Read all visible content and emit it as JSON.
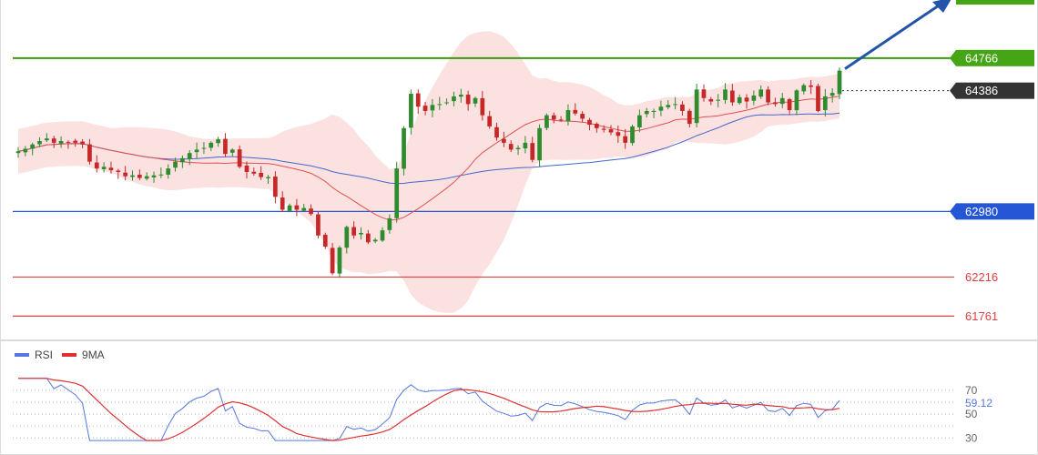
{
  "chart_data": {
    "type": "candlestick",
    "title": "",
    "price_axis": {
      "ylim": [
        61500,
        65400
      ]
    },
    "levels": [
      {
        "value": 64766,
        "label": "64766",
        "color": "#3a9a0d",
        "style": "solid",
        "tag_bg": "#46a514",
        "tag_color": "#ffffff"
      },
      {
        "value": 64386,
        "label": "64386",
        "color": "#333333",
        "style": "dotted",
        "tag_bg": "#333333",
        "tag_color": "#ffffff"
      },
      {
        "value": 62980,
        "label": "62980",
        "color": "#2456d6",
        "style": "solid",
        "tag_bg": "#2456d6",
        "tag_color": "#ffffff"
      },
      {
        "value": 62216,
        "label": "62216",
        "color": "#e04040",
        "style": "solid",
        "tag_bg": "",
        "tag_color": "#e04040"
      },
      {
        "value": 61761,
        "label": "61761",
        "color": "#e04040",
        "style": "solid",
        "tag_bg": "",
        "tag_color": "#e04040"
      }
    ],
    "closes": [
      63680,
      63710,
      63760,
      63800,
      63830,
      63780,
      63800,
      63790,
      63780,
      63760,
      63560,
      63480,
      63500,
      63460,
      63440,
      63390,
      63400,
      63370,
      63390,
      63400,
      63410,
      63480,
      63560,
      63600,
      63660,
      63700,
      63720,
      63780,
      63820,
      63650,
      63700,
      63500,
      63440,
      63420,
      63380,
      63380,
      63150,
      63000,
      63050,
      63000,
      63020,
      62950,
      62700,
      62570,
      62260,
      62560,
      62800,
      62700,
      62730,
      62620,
      62650,
      62760,
      62900,
      63480,
      63950,
      64350,
      64200,
      64150,
      64220,
      64230,
      64250,
      64320,
      64340,
      64230,
      64300,
      64100,
      63970,
      63840,
      63780,
      63700,
      63720,
      63780,
      63580,
      63950,
      64100,
      64050,
      64040,
      64160,
      64120,
      64060,
      63990,
      63950,
      63930,
      63900,
      63860,
      63780,
      63970,
      64100,
      64150,
      64150,
      64200,
      64220,
      64230,
      64150,
      64000,
      64400,
      64300,
      64260,
      64280,
      64400,
      64250,
      64310,
      64260,
      64330,
      64400,
      64250,
      64230,
      64300,
      64160,
      64390,
      64450,
      64430,
      64150,
      64320,
      64360,
      64620
    ],
    "rsi": {
      "series": [
        {
          "name": "RSI",
          "color": "#5577dd"
        },
        {
          "name": "9MA",
          "color": "#e03030"
        }
      ],
      "ylim": [
        25,
        92
      ],
      "ticks": [
        70,
        50,
        30
      ],
      "gridlines": [
        70,
        60,
        50,
        40,
        30
      ],
      "last_value": "59.12"
    }
  },
  "legend": {
    "rsi_label": "RSI",
    "ma_label": "9MA",
    "rsi_color": "#5577dd",
    "ma_color": "#e03030"
  }
}
